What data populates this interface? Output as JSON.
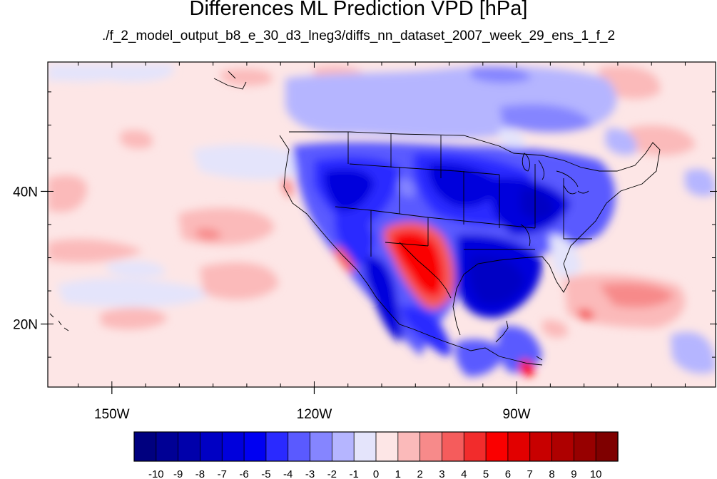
{
  "chart_data": {
    "type": "heatmap",
    "title": "Differences ML Prediction VPD [hPa]",
    "subtitle": "./f_2_model_output_b8_e_30_d3_lneg3/diffs_nn_dataset_2007_week_29_ens_1_f_2",
    "x_ticks": [
      {
        "value": -150,
        "label": "150W"
      },
      {
        "value": -120,
        "label": "120W"
      },
      {
        "value": -90,
        "label": "90W"
      }
    ],
    "y_ticks": [
      {
        "value": 40,
        "label": "40N"
      },
      {
        "value": 20,
        "label": "20N"
      }
    ],
    "xlim": [
      -159.5,
      -60.5
    ],
    "ylim": [
      10.5,
      59.5
    ],
    "colorbar": {
      "labels": [
        "-10",
        "-9",
        "-8",
        "-7",
        "-6",
        "-5",
        "-4",
        "-3",
        "-2",
        "-1",
        "0",
        "1",
        "2",
        "3",
        "4",
        "5",
        "6",
        "7",
        "8",
        "9",
        "10"
      ],
      "colors": [
        "#00007f",
        "#000095",
        "#0000ab",
        "#0000c4",
        "#0000dc",
        "#0000f2",
        "#2a2aff",
        "#5a5aff",
        "#8585ff",
        "#b5b5ff",
        "#e4e4fb",
        "#fde6e6",
        "#fbbaba",
        "#f78a8a",
        "#f55c5c",
        "#f22c2c",
        "#fa0000",
        "#e20000",
        "#c80000",
        "#ae0000",
        "#970000",
        "#7f0000"
      ]
    }
  }
}
